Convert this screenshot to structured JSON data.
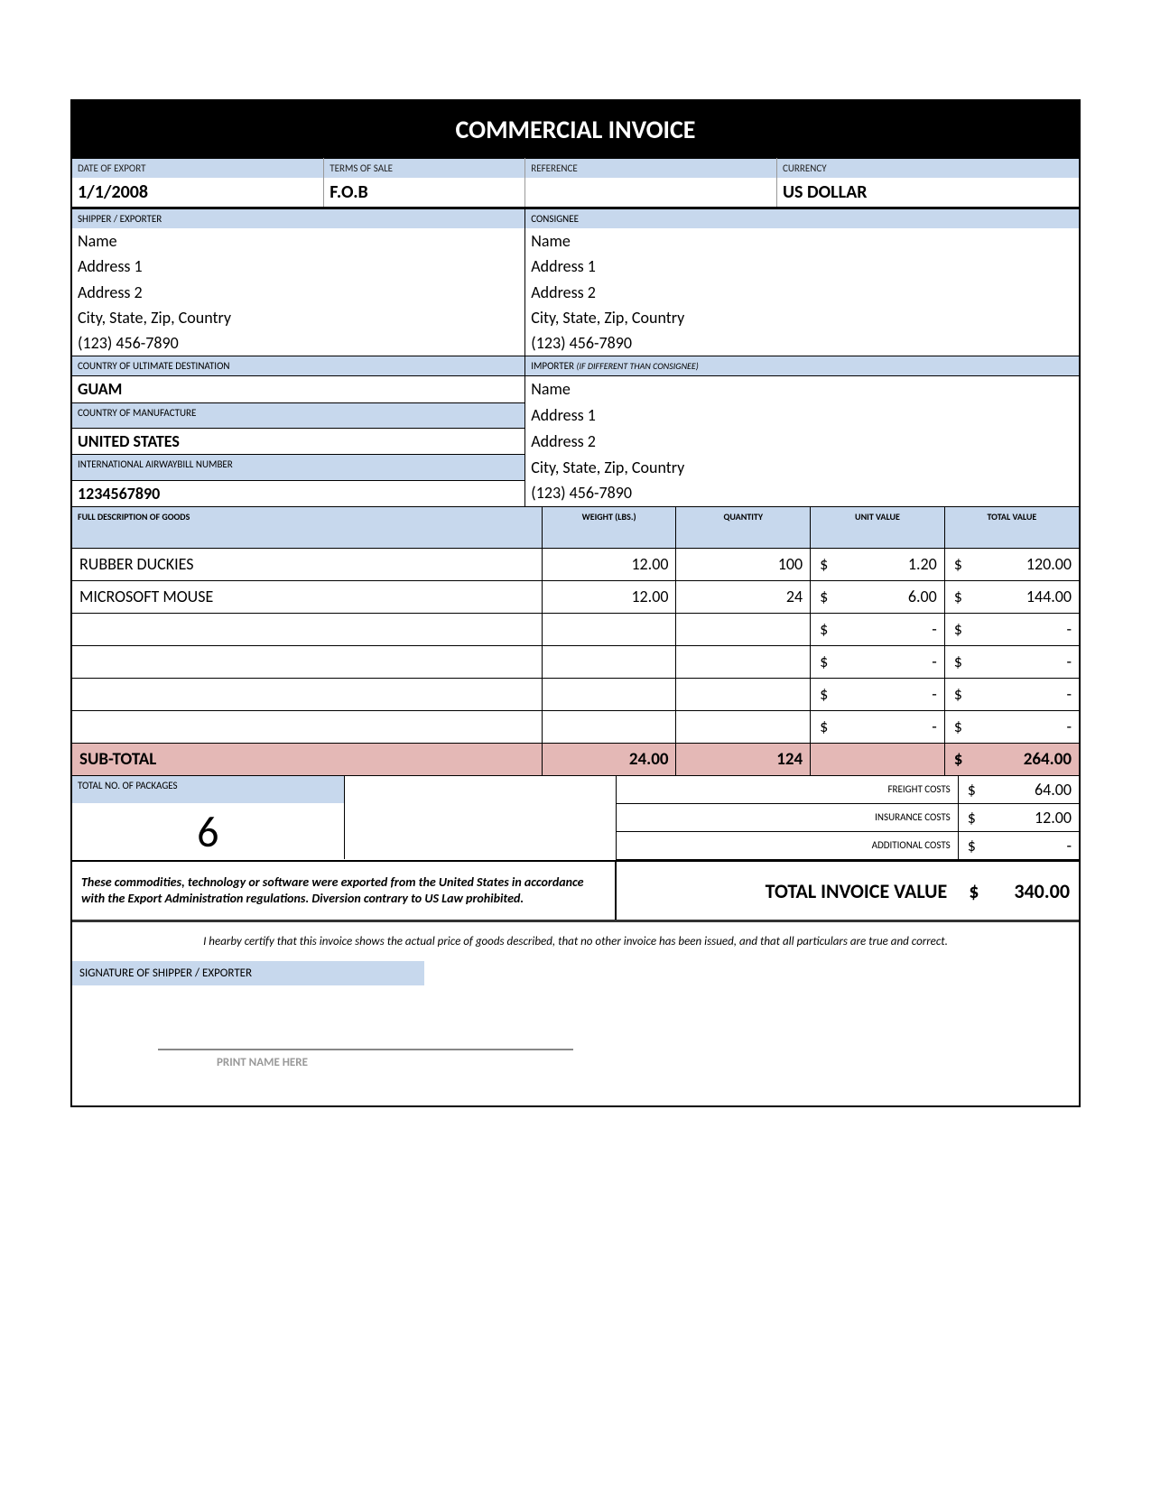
{
  "title": "COMMERCIAL INVOICE",
  "header": {
    "date_of_export": {
      "label": "DATE OF EXPORT",
      "value": "1/1/2008"
    },
    "terms_of_sale": {
      "label": "TERMS OF SALE",
      "value": "F.O.B"
    },
    "reference": {
      "label": "REFERENCE",
      "value": ""
    },
    "currency": {
      "label": "CURRENCY",
      "value": "US DOLLAR"
    }
  },
  "shipper": {
    "label": "SHIPPER / EXPORTER",
    "name": "Name",
    "address1": "Address 1",
    "address2": "Address 2",
    "city_line": "City, State, Zip, Country",
    "phone": "(123) 456-7890"
  },
  "consignee": {
    "label": "CONSIGNEE",
    "name": "Name",
    "address1": "Address 1",
    "address2": "Address 2",
    "city_line": "City, State, Zip, Country",
    "phone": "(123) 456-7890"
  },
  "destination": {
    "label": "COUNTRY OF ULTIMATE DESTINATION",
    "value": "GUAM"
  },
  "manufacture": {
    "label": "COUNTRY OF MANUFACTURE",
    "value": "UNITED STATES"
  },
  "awb": {
    "label": "INTERNATIONAL AIRWAYBILL NUMBER",
    "value": "1234567890"
  },
  "importer": {
    "label": "IMPORTER",
    "label_note": "(IF DIFFERENT THAN CONSIGNEE)",
    "name": "Name",
    "address1": "Address 1",
    "address2": "Address 2",
    "city_line": "City, State, Zip, Country",
    "phone": "(123) 456-7890"
  },
  "goods": {
    "columns": {
      "description": "FULL DESCRIPTION OF GOODS",
      "weight": "WEIGHT (LBS.)",
      "quantity": "QUANTITY",
      "unit_value": "UNIT VALUE",
      "total_value": "TOTAL VALUE"
    },
    "rows": [
      {
        "description": "RUBBER DUCKIES",
        "weight": "12.00",
        "quantity": "100",
        "unit_value": "1.20",
        "total_value": "120.00"
      },
      {
        "description": "MICROSOFT MOUSE",
        "weight": "12.00",
        "quantity": "24",
        "unit_value": "6.00",
        "total_value": "144.00"
      },
      {
        "description": "",
        "weight": "",
        "quantity": "",
        "unit_value": "-",
        "total_value": "-"
      },
      {
        "description": "",
        "weight": "",
        "quantity": "",
        "unit_value": "-",
        "total_value": "-"
      },
      {
        "description": "",
        "weight": "",
        "quantity": "",
        "unit_value": "-",
        "total_value": "-"
      },
      {
        "description": "",
        "weight": "",
        "quantity": "",
        "unit_value": "-",
        "total_value": "-"
      }
    ],
    "currency_symbol": "$"
  },
  "subtotal": {
    "label": "SUB-TOTAL",
    "weight": "24.00",
    "quantity": "124",
    "total": "264.00"
  },
  "packages": {
    "label": "TOTAL NO. OF PACKAGES",
    "value": "6"
  },
  "costs": {
    "freight": {
      "label": "FREIGHT COSTS",
      "value": "64.00"
    },
    "insurance": {
      "label": "INSURANCE COSTS",
      "value": "12.00"
    },
    "additional": {
      "label": "ADDITIONAL COSTS",
      "value": "-"
    }
  },
  "disclaimer": "These commodities, technology or software were exported from the United States in accordance with the Export Administration regulations.  Diversion contrary to US Law prohibited.",
  "total": {
    "label": "TOTAL INVOICE VALUE",
    "value": "340.00"
  },
  "certification": "I hearby certify that this invoice shows the actual price of goods described, that no other invoice has been issued, and that all particulars are true and correct.",
  "signature": {
    "label": "SIGNATURE OF SHIPPER / EXPORTER",
    "print_hint": "PRINT NAME HERE"
  },
  "colors": {
    "header_bg": "#c7d8ed",
    "subtotal_bg": "#e4b8b6",
    "title_bg": "#000000",
    "title_fg": "#ffffff"
  }
}
